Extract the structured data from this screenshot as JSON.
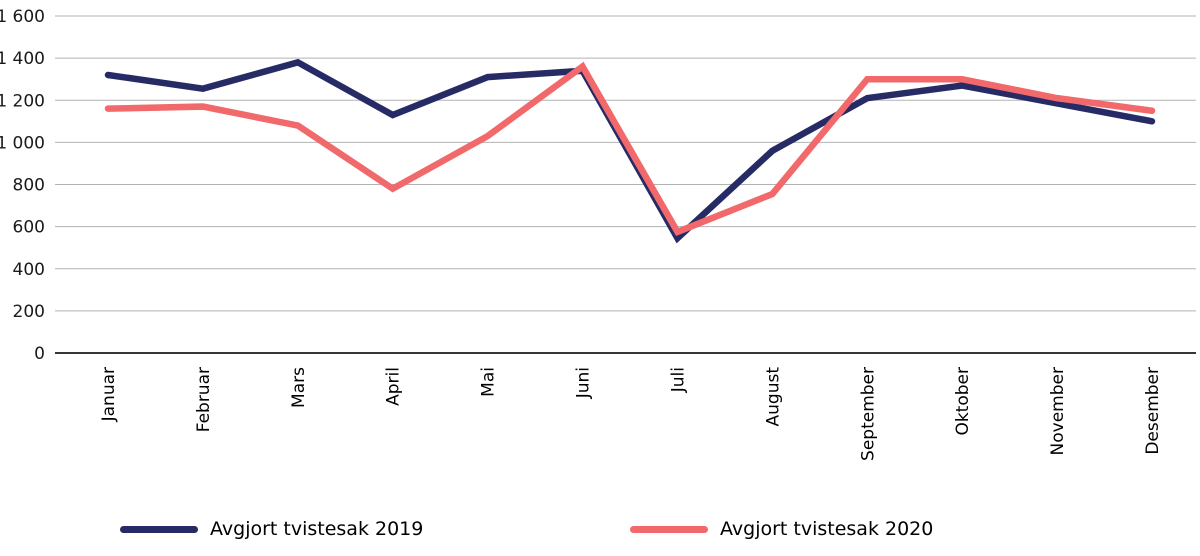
{
  "chart_data": {
    "type": "line",
    "categories": [
      "Januar",
      "Februar",
      "Mars",
      "April",
      "Mai",
      "Juni",
      "Juli",
      "August",
      "September",
      "Oktober",
      "November",
      "Desember"
    ],
    "series": [
      {
        "name": "Avgjort tvistesak 2019",
        "color": "#262b66",
        "values": [
          1320,
          1255,
          1380,
          1130,
          1310,
          1340,
          545,
          960,
          1210,
          1270,
          1185,
          1100
        ]
      },
      {
        "name": "Avgjort tvistesak 2020",
        "color": "#f2696b",
        "values": [
          1160,
          1170,
          1080,
          780,
          1030,
          1360,
          575,
          755,
          1300,
          1300,
          1210,
          1150
        ]
      }
    ],
    "title": "",
    "xlabel": "",
    "ylabel": "",
    "ylim": [
      0,
      1600
    ],
    "yticks": [
      0,
      200,
      400,
      600,
      800,
      1000,
      1200,
      1400,
      1600
    ],
    "ytick_labels": [
      "0",
      "200",
      "400",
      "600",
      "800",
      "1 000",
      "1 200",
      "1 400",
      "1 600"
    ],
    "grid": true,
    "legend_position": "bottom",
    "colors": {
      "gridline": "#b3b3b3",
      "axis_line": "#1a1a1a",
      "tick_text": "#1a1a1a"
    }
  }
}
